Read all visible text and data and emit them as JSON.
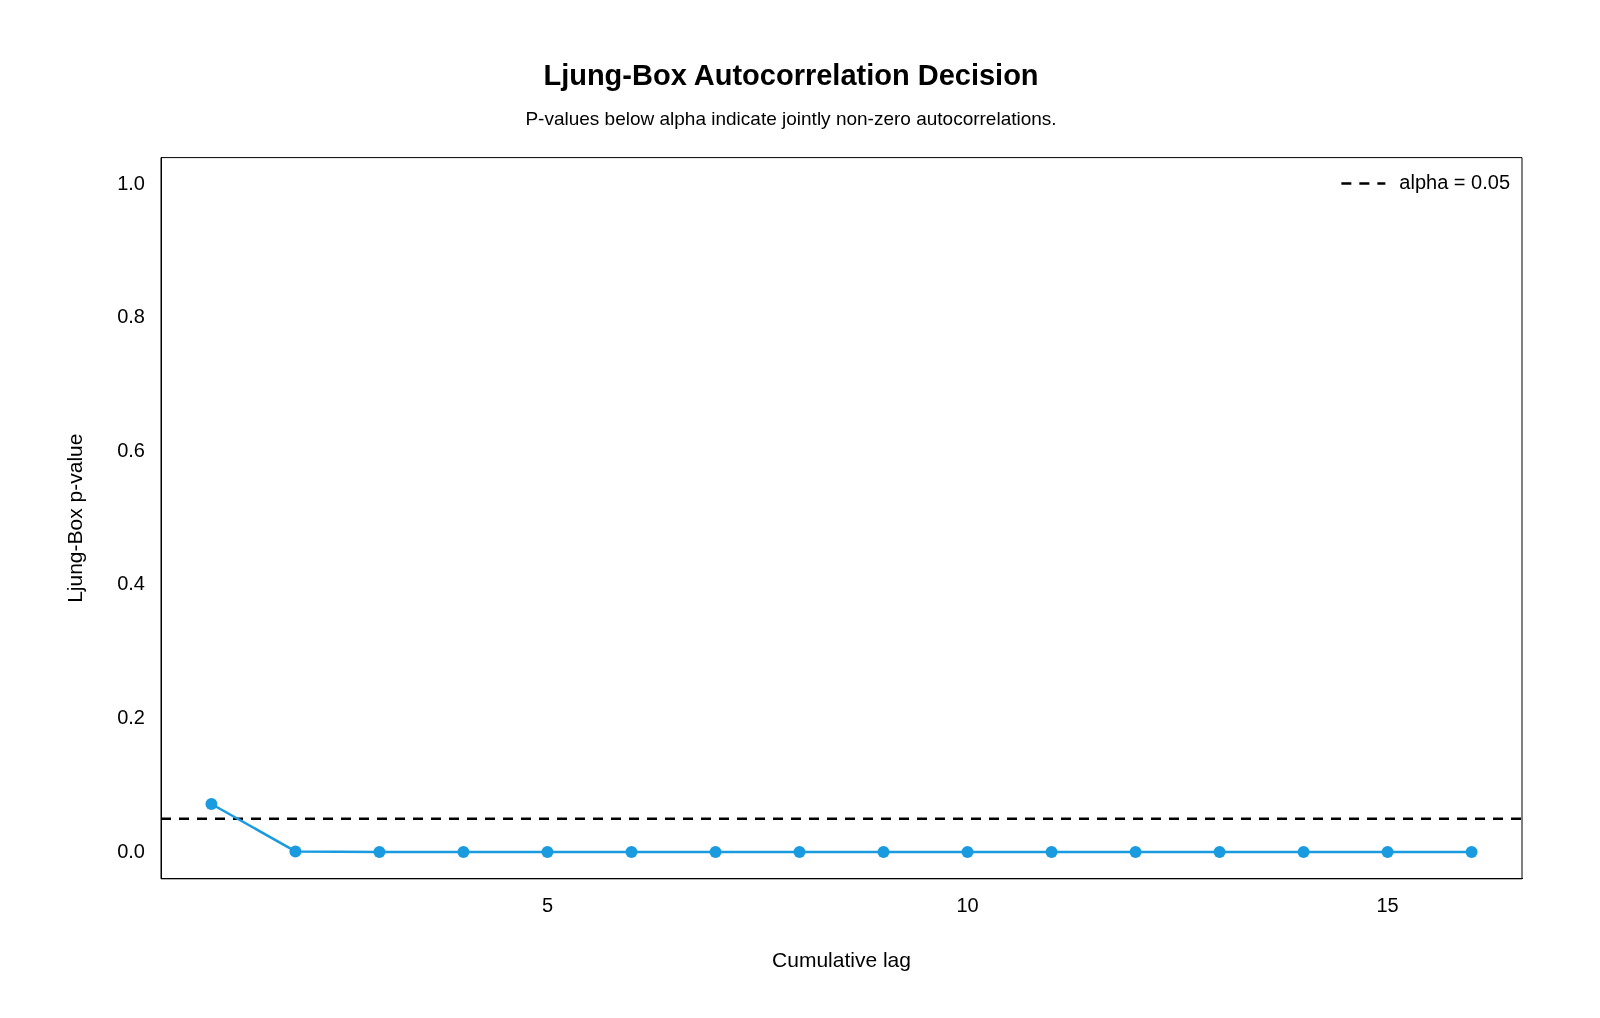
{
  "chart_data": {
    "type": "line",
    "title": "Ljung-Box Autocorrelation Decision",
    "subtitle": "P-values below alpha indicate jointly non-zero autocorrelations.",
    "xlabel": "Cumulative lag",
    "ylabel": "Ljung-Box p-value",
    "x": [
      1,
      2,
      3,
      4,
      5,
      6,
      7,
      8,
      9,
      10,
      11,
      12,
      13,
      14,
      15,
      16
    ],
    "series": [
      {
        "color": "#1a9be0",
        "values": [
          0.072,
          0.001,
          0,
          0,
          0,
          0,
          0,
          0,
          0,
          0,
          0,
          0,
          0,
          0,
          0,
          0
        ]
      }
    ],
    "xlim": [
      0.4,
      16.6
    ],
    "xticks": [
      5,
      10,
      15
    ],
    "ylim": [
      -0.04,
      1.04
    ],
    "yticks": [
      {
        "value": 0,
        "label": "0.0"
      },
      {
        "value": 0.2,
        "label": "0.2"
      },
      {
        "value": 0.4,
        "label": "0.4"
      },
      {
        "value": 0.6,
        "label": "0.6"
      },
      {
        "value": 0.8,
        "label": "0.8"
      },
      {
        "value": 1,
        "label": "1.0"
      }
    ],
    "ref_lines": [
      {
        "axis": "y",
        "value": 0.05,
        "label": "alpha = 0.05",
        "color": "#000000",
        "line_style": "dashed"
      }
    ],
    "legend": "top right",
    "marker": "circle",
    "line_style": "solid",
    "grid": false
  }
}
